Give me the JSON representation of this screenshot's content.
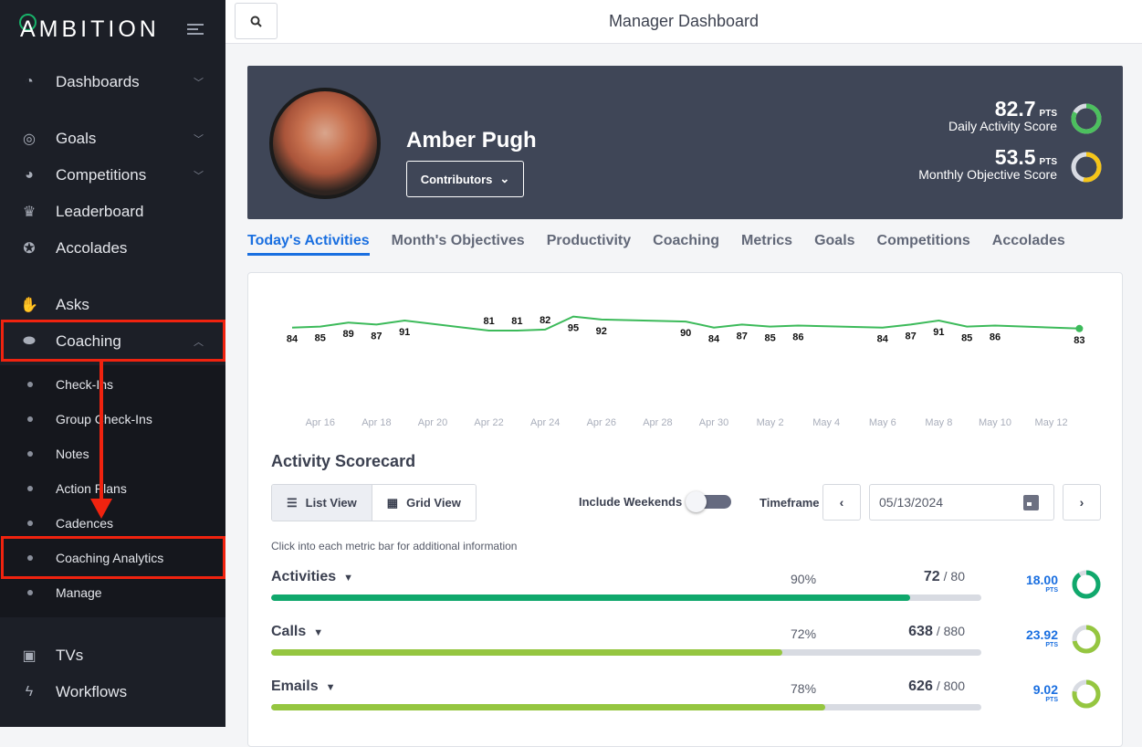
{
  "sidebar": {
    "logo": "AMBITION",
    "items": [
      {
        "label": "Dashboards",
        "icon": "gauge-icon",
        "chevron": "down"
      },
      {
        "label": "Goals",
        "icon": "target-icon",
        "chevron": "down"
      },
      {
        "label": "Competitions",
        "icon": "helmet-icon",
        "chevron": "down"
      },
      {
        "label": "Leaderboard",
        "icon": "trophy-icon"
      },
      {
        "label": "Accolades",
        "icon": "medal-icon"
      },
      {
        "label": "Asks",
        "icon": "hand-icon"
      },
      {
        "label": "Coaching",
        "icon": "whistle-icon",
        "chevron": "up"
      },
      {
        "label": "TVs",
        "icon": "tv-icon"
      },
      {
        "label": "Workflows",
        "icon": "bolt-icon"
      }
    ],
    "coaching_sub": [
      "Check-Ins",
      "Group Check-Ins",
      "Notes",
      "Action Plans",
      "Cadences",
      "Coaching Analytics",
      "Manage"
    ]
  },
  "header": {
    "title": "Manager Dashboard"
  },
  "profile": {
    "name": "Amber Pugh",
    "contributors_label": "Contributors",
    "daily": {
      "value": "82.7",
      "unit": "PTS",
      "label": "Daily Activity Score",
      "fraction": 0.83,
      "color": "#4cc05e"
    },
    "monthly": {
      "value": "53.5",
      "unit": "PTS",
      "label": "Monthly Objective Score",
      "fraction": 0.535,
      "color": "#f5c518"
    }
  },
  "tabs": [
    "Today's Activities",
    "Month's Objectives",
    "Productivity",
    "Coaching",
    "Metrics",
    "Goals",
    "Competitions",
    "Accolades"
  ],
  "chart_data": {
    "type": "line",
    "x": [
      "Apr 15",
      "Apr 16",
      "Apr 17",
      "Apr 18",
      "Apr 19",
      "Apr 22",
      "Apr 23",
      "Apr 24",
      "Apr 25",
      "Apr 26",
      "Apr 29",
      "Apr 30",
      "May 1",
      "May 2",
      "May 3",
      "May 6",
      "May 7",
      "May 8",
      "May 9",
      "May 10",
      "May 13"
    ],
    "day_index": [
      0,
      1,
      2,
      3,
      4,
      7,
      8,
      9,
      10,
      11,
      14,
      15,
      16,
      17,
      18,
      21,
      22,
      23,
      24,
      25,
      28
    ],
    "values": [
      84,
      85,
      89,
      87,
      91,
      81,
      81,
      82,
      95,
      92,
      90,
      84,
      87,
      85,
      86,
      84,
      87,
      91,
      85,
      86,
      83
    ],
    "tick_labels": [
      "Apr 16",
      "Apr 18",
      "Apr 20",
      "Apr 22",
      "Apr 24",
      "Apr 26",
      "Apr 28",
      "Apr 30",
      "May 2",
      "May 4",
      "May 6",
      "May 8",
      "May 10",
      "May 12"
    ],
    "tick_day_index": [
      1,
      3,
      5,
      7,
      9,
      11,
      13,
      15,
      17,
      19,
      21,
      23,
      25,
      27
    ],
    "color": "#3cba5a"
  },
  "scorecard": {
    "title": "Activity Scorecard",
    "list_view": "List View",
    "grid_view": "Grid View",
    "include_weekends": "Include Weekends",
    "include_weekends_on": false,
    "timeframe_label": "Timeframe",
    "date": "05/13/2024",
    "hint": "Click into each metric bar for additional information",
    "metrics": [
      {
        "name": "Activities",
        "pct": "90%",
        "value": "72",
        "target": "/ 80",
        "progress": 0.9,
        "points": "18.00",
        "pts_label": "PTS",
        "ring": 0.9,
        "color": "#10a86c"
      },
      {
        "name": "Calls",
        "pct": "72%",
        "value": "638",
        "target": "/ 880",
        "progress": 0.72,
        "points": "23.92",
        "pts_label": "PTS",
        "ring": 0.72,
        "color": "#95c640"
      },
      {
        "name": "Emails",
        "pct": "78%",
        "value": "626",
        "target": "/ 800",
        "progress": 0.78,
        "points": "9.02",
        "pts_label": "PTS",
        "ring": 0.78,
        "color": "#95c640"
      }
    ]
  }
}
